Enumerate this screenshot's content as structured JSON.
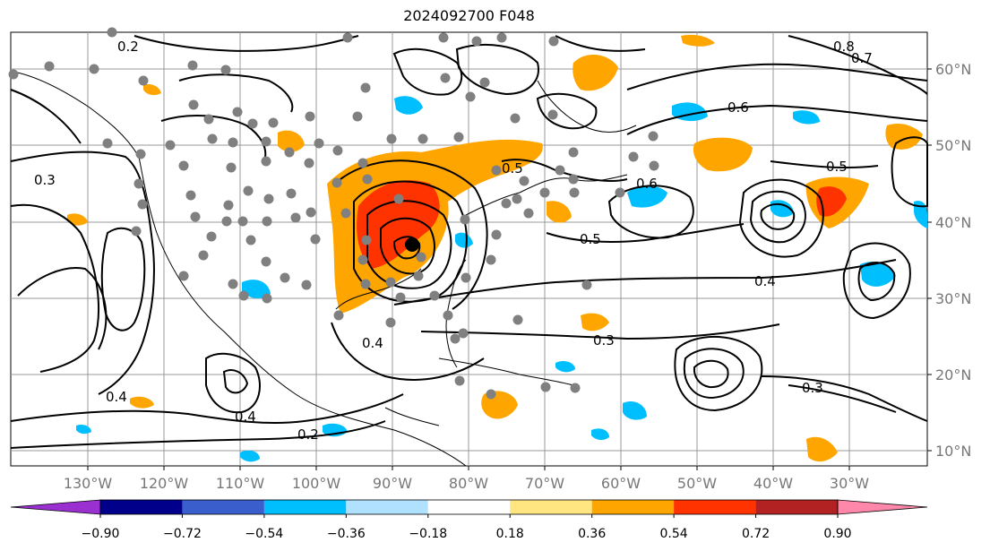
{
  "title": "2024092700 F048",
  "map": {
    "lon_labels": [
      "130°W",
      "120°W",
      "110°W",
      "100°W",
      "90°W",
      "80°W",
      "70°W",
      "60°W",
      "50°W",
      "40°W",
      "30°W"
    ],
    "lat_labels": [
      "60°N",
      "50°N",
      "40°N",
      "30°N",
      "20°N",
      "10°N"
    ],
    "contour_labels": [
      "0.2",
      "0.3",
      "0.4",
      "0.5",
      "0.6",
      "0.7",
      "0.8",
      "0.3",
      "0.4",
      "0.5",
      "0.6",
      "0.2",
      "0.4",
      "0.3",
      "0.5",
      "0.4"
    ]
  },
  "colorbar": {
    "ticks": [
      "−0.90",
      "−0.72",
      "−0.54",
      "−0.36",
      "−0.18",
      "0.18",
      "0.36",
      "0.54",
      "0.72",
      "0.90"
    ],
    "colors": [
      "#9b30d0",
      "#00008b",
      "#3a5fcd",
      "#00bfff",
      "#b0e2ff",
      "#ffffff",
      "#ffe680",
      "#ffa500",
      "#ff3300",
      "#b22222",
      "#ff88aa"
    ]
  }
}
